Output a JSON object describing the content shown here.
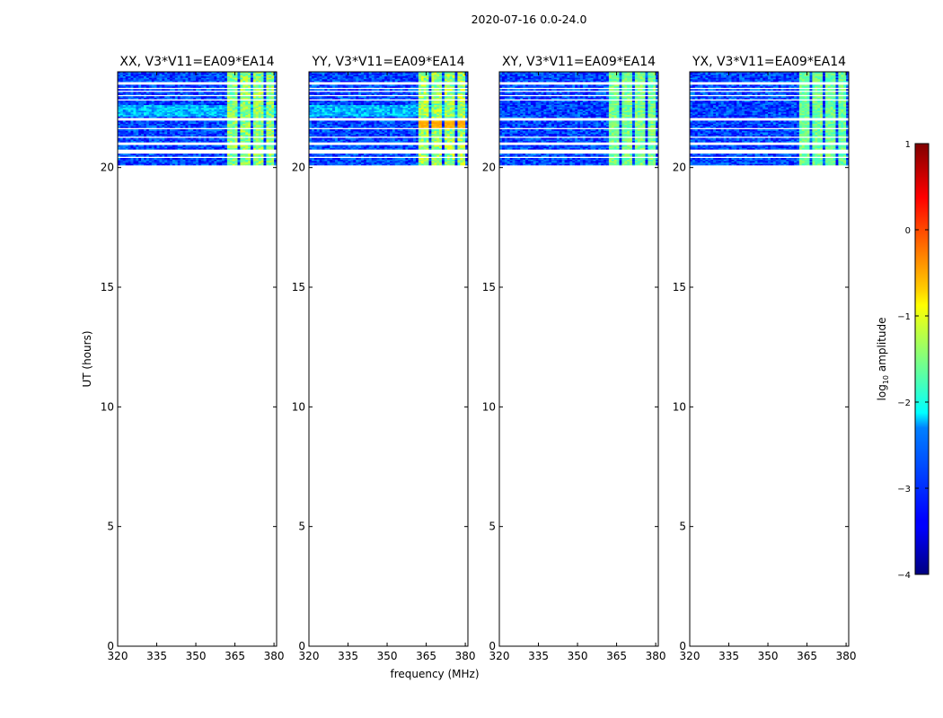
{
  "figure": {
    "suptitle": "2020-07-16 0.0-24.0",
    "xlabel": "frequency (MHz)",
    "ylabel": "UT (hours)",
    "colorbar_label_prefix": "log",
    "colorbar_label_sub": "10",
    "colorbar_label_suffix": " amplitude"
  },
  "chart_data": {
    "type": "heatmap",
    "panels": [
      {
        "title": "XX, V3*V11=EA09*EA14",
        "pol": "XX"
      },
      {
        "title": "YY, V3*V11=EA09*EA14",
        "pol": "YY"
      },
      {
        "title": "XY, V3*V11=EA09*EA14",
        "pol": "XY"
      },
      {
        "title": "YX, V3*V11=EA09*EA14",
        "pol": "YX"
      }
    ],
    "x": {
      "label": "frequency (MHz)",
      "lim": [
        320,
        381
      ],
      "ticks": [
        320,
        335,
        350,
        365,
        380
      ],
      "tick_labels": [
        "320",
        "335",
        "350",
        "365",
        "380"
      ]
    },
    "y": {
      "label": "UT (hours)",
      "lim": [
        0,
        24
      ],
      "ticks": [
        0,
        5,
        10,
        15,
        20
      ],
      "tick_labels": [
        "0",
        "5",
        "10",
        "15",
        "20"
      ]
    },
    "colorbar": {
      "colormap": "jet",
      "lim": [
        -4,
        1
      ],
      "ticks": [
        1,
        0,
        -1,
        -2,
        -3,
        -4
      ],
      "tick_labels": [
        "1",
        "0",
        "−1",
        "−2",
        "−3",
        "−4"
      ]
    },
    "data_ut_range": [
      20.1,
      24.0
    ],
    "data_gaps_ut": [
      [
        20.35,
        20.45
      ],
      [
        20.55,
        20.7
      ],
      [
        20.88,
        21.0
      ],
      [
        21.18,
        21.25
      ],
      [
        21.55,
        21.62
      ],
      [
        21.95,
        22.05
      ],
      [
        22.75,
        22.82
      ],
      [
        22.95,
        23.02
      ],
      [
        23.12,
        23.18
      ],
      [
        23.22,
        23.28
      ],
      [
        23.45,
        23.52
      ]
    ],
    "rfi_bands_mhz": [
      [
        362,
        366
      ],
      [
        367,
        371
      ],
      [
        372,
        376
      ],
      [
        377,
        380
      ]
    ]
  }
}
